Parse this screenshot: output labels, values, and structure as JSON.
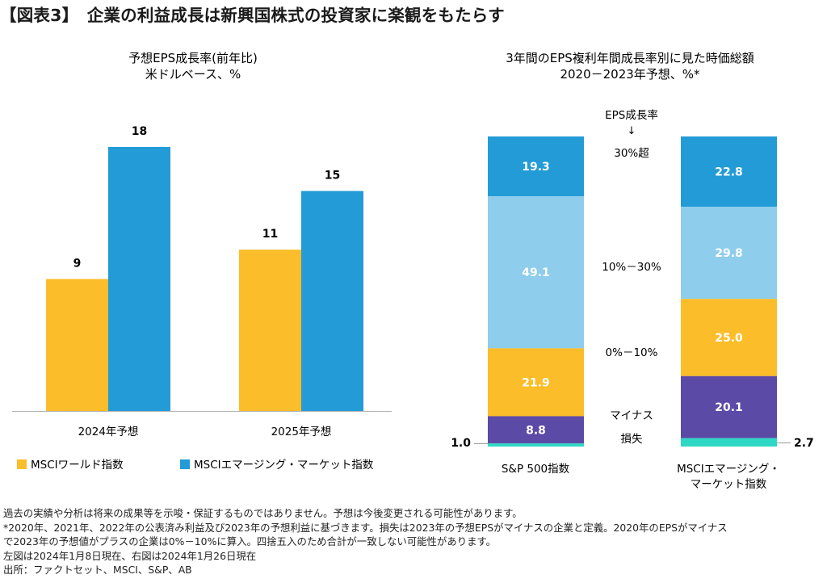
{
  "page_title": "【図表3】　企業の利益成長は新興国株式の投資家に楽観をもたらす",
  "colors": {
    "msci_world": "#fbbd29",
    "msci_em": "#239bd6",
    "band_over30": "#239bd6",
    "band_10_30": "#8ecdec",
    "band_0_10": "#fbbd29",
    "band_negative": "#5b4aa6",
    "band_loss": "#2fd8c4"
  },
  "chart_data": [
    {
      "type": "bar",
      "title": "予想EPS成長率(前年比)",
      "subtitle": "米ドルベース、%",
      "categories": [
        "2024年予想",
        "2025年予想"
      ],
      "series": [
        {
          "name": "MSCIワールド指数",
          "values": [
            9,
            11
          ]
        },
        {
          "name": "MSCIエマージング・マーケット指数",
          "values": [
            18,
            15
          ]
        }
      ],
      "ylim": [
        0,
        20
      ],
      "grid": false,
      "legend": "bottom"
    },
    {
      "type": "bar",
      "stacked": true,
      "title": "3年間のEPS複利年間成長率別に見た時価総額",
      "subtitle": "2020－2023年予想、%*",
      "band_header": "EPS成長率",
      "band_arrow": "↓",
      "bands": [
        "30%超",
        "10%－30%",
        "0%－10%",
        "マイナス",
        "損失"
      ],
      "columns": [
        {
          "label": "S&P 500指数",
          "values": [
            19.3,
            49.1,
            21.9,
            8.8,
            1.0
          ]
        },
        {
          "label_lines": [
            "MSCIエマージング・",
            "マーケット指数"
          ],
          "values": [
            22.8,
            29.8,
            25.0,
            20.1,
            2.7
          ]
        }
      ],
      "grid": false
    }
  ],
  "footnotes": [
    "過去の実績や分析は将来の成果等を示唆・保証するものではありません。予想は今後変更される可能性があります。",
    "*2020年、2021年、2022年の公表済み利益及び2023年の予想利益に基づきます。損失は2023年の予想EPSがマイナスの企業と定義。2020年のEPSがマイナス",
    "で2023年の予想値がプラスの企業は0%－10%に算入。四捨五入のため合計が一致しない可能性があります。",
    "左図は2024年1月8日現在、右図は2024年1月26日現在",
    "出所：ファクトセット、MSCI、S&P、AB"
  ]
}
